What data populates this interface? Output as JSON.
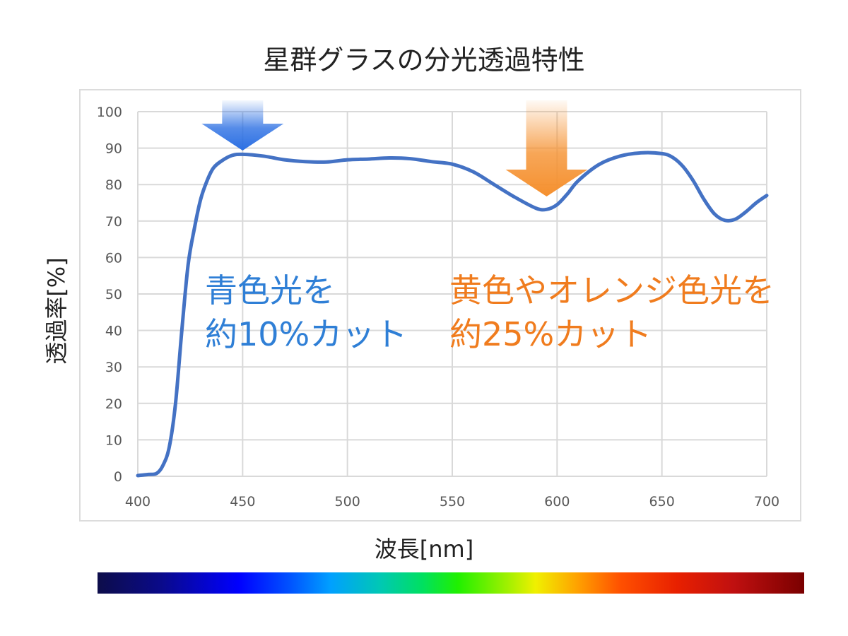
{
  "chart_data": {
    "type": "line",
    "title": "星群グラスの分光透過特性",
    "xlabel": "波長[nm]",
    "ylabel": "透過率[%]",
    "xlim": [
      400,
      700
    ],
    "ylim": [
      0,
      100
    ],
    "x_ticks": [
      "400",
      "450",
      "500",
      "550",
      "600",
      "650",
      "700"
    ],
    "y_ticks": [
      "0",
      "10",
      "20",
      "30",
      "40",
      "50",
      "60",
      "70",
      "80",
      "90",
      "100"
    ],
    "grid": true,
    "legend": "none",
    "series": [
      {
        "color": "#4472c4",
        "points": [
          [
            400,
            0.2
          ],
          [
            405,
            0.5
          ],
          [
            409,
            0.8
          ],
          [
            412,
            3
          ],
          [
            415,
            8
          ],
          [
            418,
            20
          ],
          [
            421,
            40
          ],
          [
            424,
            58
          ],
          [
            427,
            68
          ],
          [
            430,
            76
          ],
          [
            433,
            81
          ],
          [
            436,
            84.5
          ],
          [
            440,
            86.5
          ],
          [
            445,
            88
          ],
          [
            450,
            88.3
          ],
          [
            460,
            87.8
          ],
          [
            470,
            86.8
          ],
          [
            480,
            86.3
          ],
          [
            490,
            86.2
          ],
          [
            500,
            86.8
          ],
          [
            510,
            87
          ],
          [
            520,
            87.3
          ],
          [
            530,
            87.1
          ],
          [
            540,
            86.3
          ],
          [
            550,
            85.6
          ],
          [
            560,
            83.5
          ],
          [
            570,
            80
          ],
          [
            580,
            76.5
          ],
          [
            590,
            73.5
          ],
          [
            595,
            73.2
          ],
          [
            600,
            74.5
          ],
          [
            605,
            77.5
          ],
          [
            610,
            81
          ],
          [
            620,
            85.5
          ],
          [
            630,
            87.8
          ],
          [
            640,
            88.7
          ],
          [
            650,
            88.5
          ],
          [
            655,
            87.5
          ],
          [
            660,
            85
          ],
          [
            665,
            81
          ],
          [
            670,
            76
          ],
          [
            675,
            72
          ],
          [
            680,
            70.2
          ],
          [
            685,
            70.5
          ],
          [
            690,
            72.5
          ],
          [
            695,
            75
          ],
          [
            700,
            77
          ]
        ]
      }
    ],
    "annotations": [
      {
        "lines": [
          "青色光を",
          "約10%カット"
        ],
        "color": "#2f7fd6",
        "arrow_x": 450,
        "arrow_color": "#2b6fe3"
      },
      {
        "lines": [
          "黄色やオレンジ色光を",
          "約25%カット"
        ],
        "color": "#f07c1e",
        "arrow_x": 595,
        "arrow_color": "#f5902e"
      }
    ]
  }
}
